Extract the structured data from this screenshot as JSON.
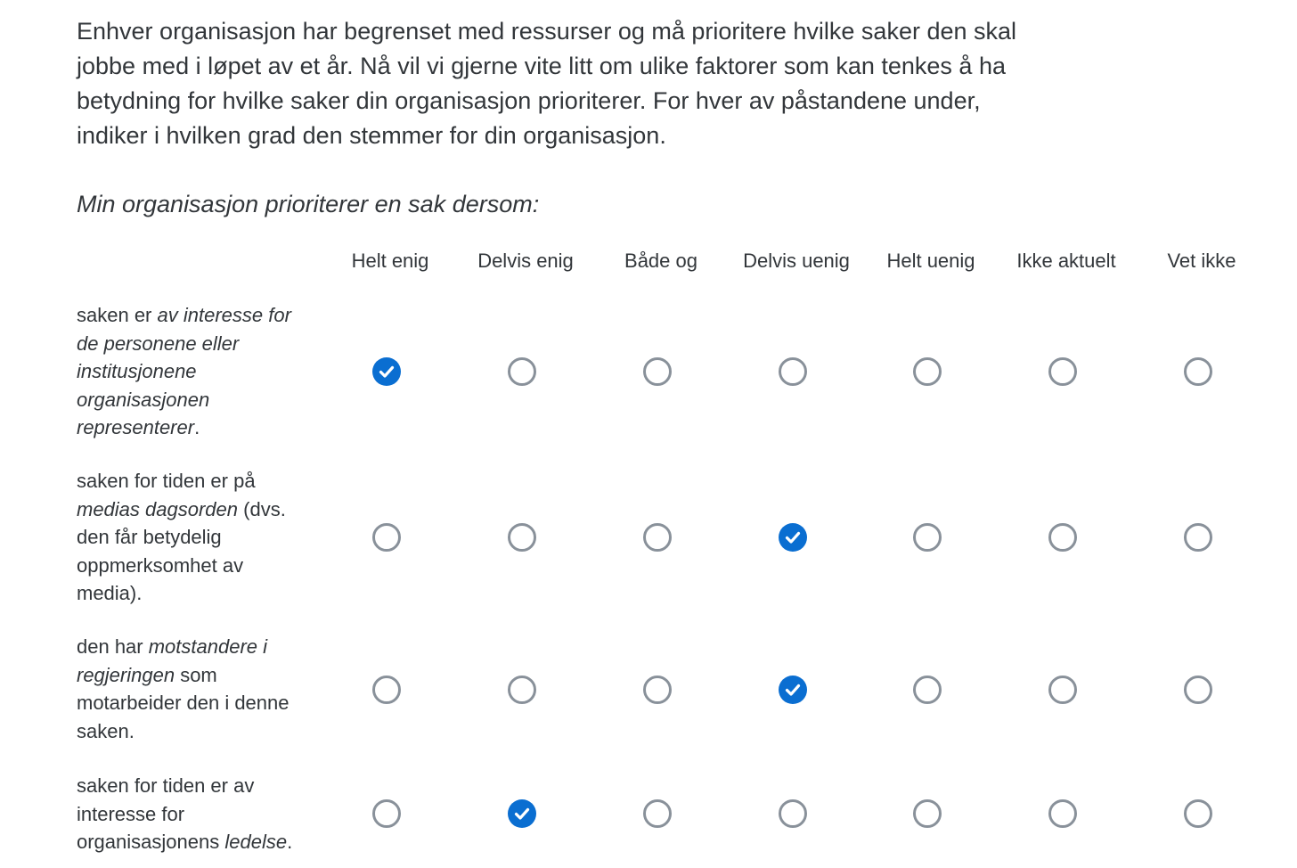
{
  "intro_text": "Enhver organisasjon har begrenset med ressurser og må prioritere hvilke saker den skal jobbe med i løpet av et år. Nå vil vi gjerne vite litt om ulike faktorer som kan tenkes å ha betydning for hvilke saker din organisasjon prioriterer. For hver av påstandene under, indiker i hvilken grad den stemmer for din organisasjon.",
  "subtitle": "Min organisasjon prioriterer en sak dersom:",
  "columns": [
    "Helt enig",
    "Delvis enig",
    "Både og",
    "Delvis uenig",
    "Helt uenig",
    "Ikke aktuelt",
    "Vet ikke"
  ],
  "rows": [
    {
      "segments": [
        {
          "text": "saken er ",
          "italic": false
        },
        {
          "text": "av interesse for de personene eller institusjonene organisasjonen representerer",
          "italic": true
        },
        {
          "text": ".",
          "italic": false
        }
      ],
      "selected_index": 0
    },
    {
      "segments": [
        {
          "text": "saken for tiden er på ",
          "italic": false
        },
        {
          "text": "medias dagsorden",
          "italic": true
        },
        {
          "text": " (dvs. den får betydelig oppmerksomhet av media).",
          "italic": false
        }
      ],
      "selected_index": 3
    },
    {
      "segments": [
        {
          "text": "den har ",
          "italic": false
        },
        {
          "text": "motstandere i regjeringen",
          "italic": true
        },
        {
          "text": " som motarbeider den i denne saken.",
          "italic": false
        }
      ],
      "selected_index": 3
    },
    {
      "segments": [
        {
          "text": "saken for tiden er av interesse for organisasjonens ",
          "italic": false
        },
        {
          "text": "ledelse",
          "italic": true
        },
        {
          "text": ".",
          "italic": false
        }
      ],
      "selected_index": 1
    }
  ],
  "colors": {
    "accent": "#0a6ed1",
    "radio_border": "#89919a",
    "text": "#32363a"
  }
}
